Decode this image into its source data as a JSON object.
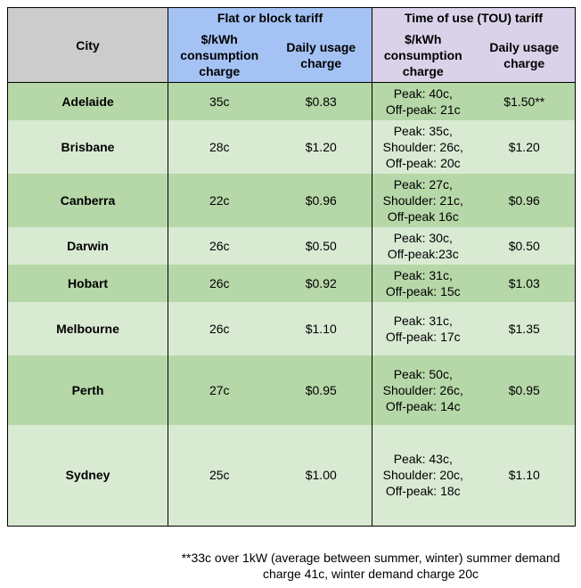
{
  "header": {
    "city": "City",
    "flat_group": "Flat or block tariff",
    "tou_group": "Time of use (TOU) tariff",
    "flat_consumption": "$/kWh consumption charge",
    "flat_daily": "Daily usage charge",
    "tou_consumption": "$/kWh consumption charge",
    "tou_daily": "Daily usage charge"
  },
  "rows": [
    {
      "city": "Adelaide",
      "flat_rate": "35c",
      "flat_daily": "$0.83",
      "tou_rates": [
        "Peak: 40c,",
        "Off-peak: 21c"
      ],
      "tou_daily": "$1.50**"
    },
    {
      "city": "Brisbane",
      "flat_rate": "28c",
      "flat_daily": "$1.20",
      "tou_rates": [
        "Peak: 35c,",
        "Shoulder: 26c,",
        "Off-peak: 20c"
      ],
      "tou_daily": "$1.20"
    },
    {
      "city": "Canberra",
      "flat_rate": "22c",
      "flat_daily": "$0.96",
      "tou_rates": [
        "Peak: 27c,",
        "Shoulder: 21c,",
        "Off-peak 16c"
      ],
      "tou_daily": "$0.96"
    },
    {
      "city": "Darwin",
      "flat_rate": "26c",
      "flat_daily": "$0.50",
      "tou_rates": [
        "Peak: 30c,",
        "Off-peak:23c"
      ],
      "tou_daily": "$0.50"
    },
    {
      "city": "Hobart",
      "flat_rate": "26c",
      "flat_daily": "$0.92",
      "tou_rates": [
        "Peak: 31c,",
        "Off-peak: 15c"
      ],
      "tou_daily": "$1.03"
    },
    {
      "city": "Melbourne",
      "flat_rate": "26c",
      "flat_daily": "$1.10",
      "tou_rates": [
        "Peak: 31c,",
        "Off-peak: 17c"
      ],
      "tou_daily": "$1.35"
    },
    {
      "city": "Perth",
      "flat_rate": "27c",
      "flat_daily": "$0.95",
      "tou_rates": [
        "Peak: 50c,",
        "Shoulder: 26c,",
        "Off-peak: 14c"
      ],
      "tou_daily": "$0.95"
    },
    {
      "city": "Sydney",
      "flat_rate": "25c",
      "flat_daily": "$1.00",
      "tou_rates": [
        "Peak: 43c,",
        "Shoulder: 20c,",
        "Off-peak: 18c"
      ],
      "tou_daily": "$1.10"
    }
  ],
  "footnote": [
    "**33c over 1kW (average between summer, winter) summer demand",
    "charge 41c, winter demand charge 20c"
  ]
}
